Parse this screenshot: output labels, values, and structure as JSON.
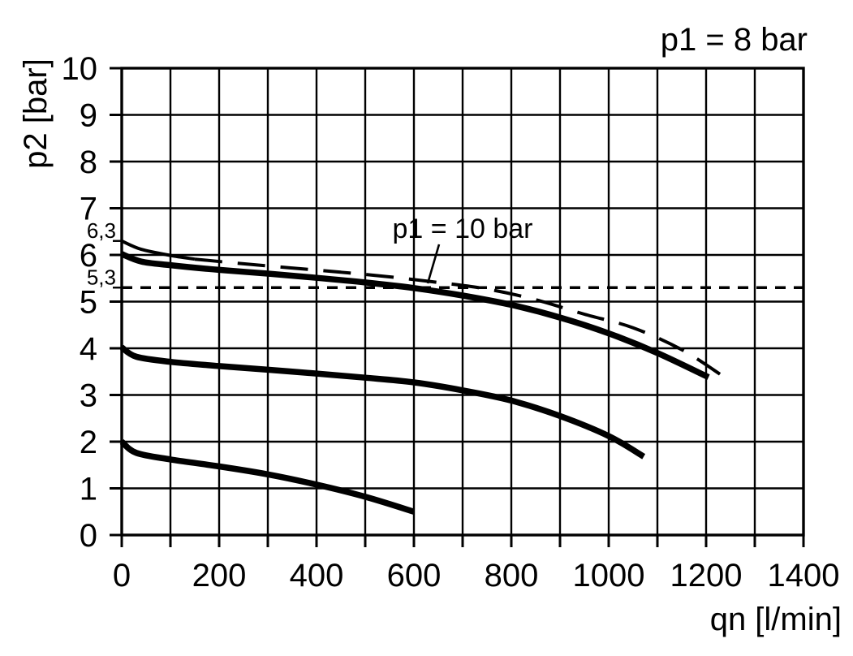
{
  "chart_data": {
    "type": "line",
    "title": "",
    "corner_label": "p1 = 8 bar",
    "xlabel": "qn [l/min]",
    "ylabel": "p2 [bar]",
    "grid": true,
    "legend": false,
    "background": "#ffffff",
    "axis_color": "#000000",
    "x_axis": {
      "min": 0,
      "max": 1400,
      "grid_step": 100,
      "tick_step": 100,
      "label_step": 200
    },
    "y_axis": {
      "min": 0,
      "max": 10,
      "grid_step": 1,
      "tick_step": 1,
      "label_step": 1
    },
    "x_tick_labels": [
      "0",
      "200",
      "400",
      "600",
      "800",
      "1000",
      "1200",
      "1400"
    ],
    "y_tick_labels": [
      "0",
      "1",
      "2",
      "3",
      "4",
      "5",
      "6",
      "7",
      "8",
      "9",
      "10"
    ],
    "y_extra_labels": [
      {
        "value": 6.3,
        "label": "6,3"
      },
      {
        "value": 5.3,
        "label": "5,3"
      }
    ],
    "reference_line": {
      "p2": 5.3,
      "style": "short-dash"
    },
    "annotations": [
      {
        "text": "p1 = 10 bar",
        "target_series": "p1-10-bar"
      }
    ],
    "series": [
      {
        "id": "p1-8-bar-upper",
        "label": "p1 = 8 bar",
        "style": "thick-solid",
        "points": [
          [
            0,
            6.02
          ],
          [
            40,
            5.86
          ],
          [
            100,
            5.78
          ],
          [
            200,
            5.68
          ],
          [
            300,
            5.6
          ],
          [
            400,
            5.51
          ],
          [
            500,
            5.41
          ],
          [
            600,
            5.29
          ],
          [
            700,
            5.13
          ],
          [
            800,
            4.93
          ],
          [
            900,
            4.66
          ],
          [
            1000,
            4.32
          ],
          [
            1100,
            3.9
          ],
          [
            1205,
            3.38
          ]
        ]
      },
      {
        "id": "p1-10-bar",
        "label": "p1 = 10 bar",
        "style": "thin-long-dash",
        "solid_until": 150,
        "points": [
          [
            0,
            6.3
          ],
          [
            40,
            6.12
          ],
          [
            100,
            5.99
          ],
          [
            150,
            5.91
          ],
          [
            250,
            5.81
          ],
          [
            350,
            5.72
          ],
          [
            450,
            5.63
          ],
          [
            550,
            5.53
          ],
          [
            650,
            5.41
          ],
          [
            750,
            5.27
          ],
          [
            850,
            5.04
          ],
          [
            950,
            4.73
          ],
          [
            1050,
            4.44
          ],
          [
            1150,
            3.97
          ],
          [
            1235,
            3.4
          ]
        ]
      },
      {
        "id": "middle-curve",
        "label": "",
        "style": "thick-solid",
        "points": [
          [
            0,
            4.02
          ],
          [
            30,
            3.82
          ],
          [
            100,
            3.71
          ],
          [
            200,
            3.62
          ],
          [
            300,
            3.54
          ],
          [
            400,
            3.46
          ],
          [
            500,
            3.37
          ],
          [
            600,
            3.27
          ],
          [
            700,
            3.1
          ],
          [
            800,
            2.88
          ],
          [
            900,
            2.55
          ],
          [
            1000,
            2.12
          ],
          [
            1072,
            1.68
          ]
        ]
      },
      {
        "id": "lower-curve",
        "label": "",
        "style": "thick-solid",
        "points": [
          [
            0,
            2.0
          ],
          [
            30,
            1.76
          ],
          [
            100,
            1.62
          ],
          [
            200,
            1.47
          ],
          [
            300,
            1.3
          ],
          [
            400,
            1.08
          ],
          [
            500,
            0.82
          ],
          [
            600,
            0.5
          ]
        ]
      }
    ]
  }
}
